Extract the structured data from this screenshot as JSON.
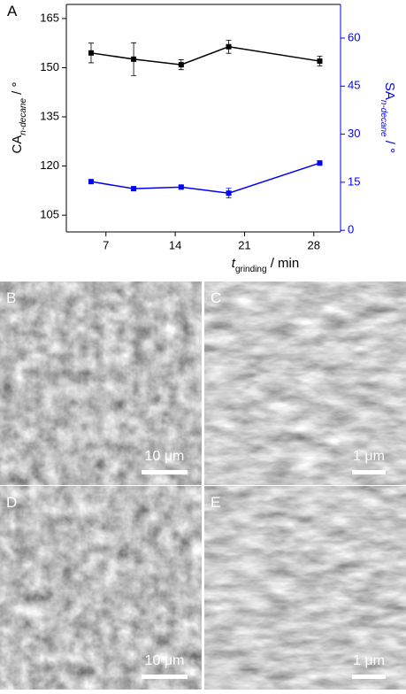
{
  "chart_data": {
    "type": "line",
    "panel_label": "A",
    "x": [
      5.5,
      9.8,
      14.6,
      19.4,
      28.6
    ],
    "series": [
      {
        "color": "#000000",
        "values": [
          154.5,
          152.6,
          150.9,
          156.4,
          152
        ],
        "errors": [
          3,
          5,
          1.5,
          2,
          1.5
        ]
      },
      {
        "color": "#0000ff",
        "axis": "y2",
        "values": [
          15.2,
          13,
          13.5,
          11.6,
          21
        ],
        "errors": [
          0.5,
          0.5,
          0.5,
          1.5,
          0.7
        ]
      }
    ],
    "xlim": [
      3,
      30.7
    ],
    "xticks": [
      7,
      14,
      21,
      28
    ],
    "ylim": [
      99.9,
      169.3
    ],
    "yticks": [
      105,
      120,
      135,
      150,
      165
    ],
    "y2lim": [
      -0.5,
      70.5
    ],
    "y2ticks": [
      0,
      15,
      30,
      45,
      60
    ],
    "x_label": {
      "main": "t",
      "sub": "grinding",
      "unit": " / min"
    },
    "y_label": {
      "main": "CA",
      "sub": "n-decane",
      "unit": " / °"
    },
    "y2_label": {
      "main": "SA",
      "sub": "n-decane",
      "unit": " / °"
    }
  },
  "images": [
    {
      "label": "B",
      "scale_bar": "10 μm"
    },
    {
      "label": "C",
      "scale_bar": "1 μm"
    },
    {
      "label": "D",
      "scale_bar": "10 μm"
    },
    {
      "label": "E",
      "scale_bar": "1 μm"
    }
  ]
}
